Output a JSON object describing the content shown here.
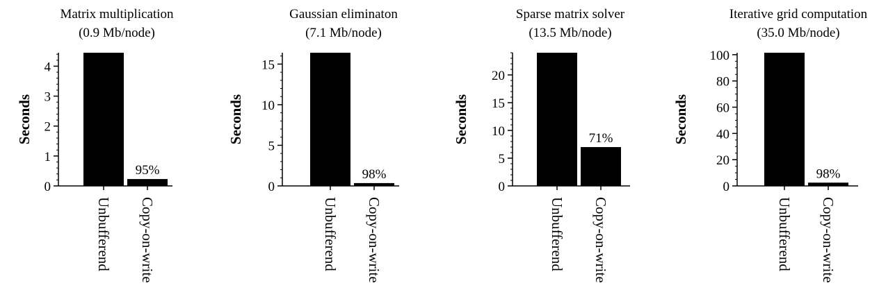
{
  "ylabel": "Seconds",
  "chart_data": [
    {
      "type": "bar",
      "title": [
        "Matrix multiplication",
        "(0.9 Mb/node)"
      ],
      "ylabel": "Seconds",
      "categories": [
        "Unbufferend",
        "Copy-on-write"
      ],
      "values": [
        4.45,
        0.23
      ],
      "annotations": [
        "",
        "95%"
      ],
      "ylim": [
        0,
        4.45
      ],
      "yticks": [
        0,
        1,
        2,
        3,
        4
      ],
      "ytick_labels": [
        "0",
        "1",
        "2",
        "3",
        "4"
      ],
      "minor_step": 0.2
    },
    {
      "type": "bar",
      "title": [
        "Gaussian eliminaton",
        "(7.1 Mb/node)"
      ],
      "ylabel": "Seconds",
      "categories": [
        "Unbufferend",
        "Copy-on-write"
      ],
      "values": [
        16.4,
        0.35
      ],
      "annotations": [
        "",
        "98%"
      ],
      "ylim": [
        0,
        16.4
      ],
      "yticks": [
        0,
        5,
        10,
        15
      ],
      "ytick_labels": [
        "0",
        "5",
        "10",
        "15"
      ],
      "minor_step": 1
    },
    {
      "type": "bar",
      "title": [
        "Sparse matrix solver",
        "(13.5 Mb/node)"
      ],
      "ylabel": "Seconds",
      "categories": [
        "Unbufferend",
        "Copy-on-write"
      ],
      "values": [
        24.0,
        7.0
      ],
      "annotations": [
        "",
        "71%"
      ],
      "ylim": [
        0,
        24.0
      ],
      "yticks": [
        0,
        5,
        10,
        15,
        20
      ],
      "ytick_labels": [
        "0",
        "5",
        "10",
        "15",
        "20"
      ],
      "minor_step": 1
    },
    {
      "type": "bar",
      "title": [
        "Iterative grid computation",
        "(35.0 Mb/node)"
      ],
      "ylabel": "Seconds",
      "categories": [
        "Unbufferend",
        "Copy-on-write"
      ],
      "values": [
        101.5,
        2.5
      ],
      "annotations": [
        "",
        "98%"
      ],
      "ylim": [
        0,
        101.5
      ],
      "yticks": [
        0,
        20,
        40,
        60,
        80,
        100
      ],
      "ytick_labels": [
        "0",
        "20",
        "40",
        "60",
        "80",
        "100"
      ],
      "minor_step": 5
    }
  ]
}
